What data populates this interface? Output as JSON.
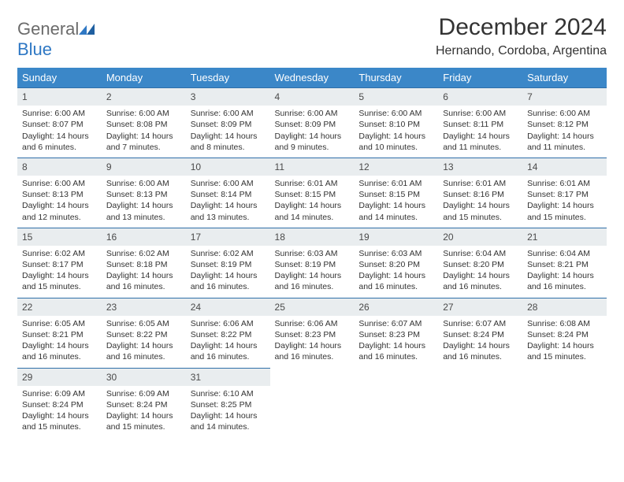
{
  "logo": {
    "word1": "General",
    "word2": "Blue"
  },
  "title": "December 2024",
  "location": "Hernando, Cordoba, Argentina",
  "colors": {
    "header_bg": "#3b87c8",
    "header_text": "#ffffff",
    "daynum_bg": "#e9edef",
    "row_divider": "#2f6fa8",
    "logo_gray": "#6b6b6b",
    "logo_blue": "#2f78c4"
  },
  "weekday_labels": [
    "Sunday",
    "Monday",
    "Tuesday",
    "Wednesday",
    "Thursday",
    "Friday",
    "Saturday"
  ],
  "days": [
    {
      "n": 1,
      "sunrise": "6:00 AM",
      "sunset": "8:07 PM",
      "daylight": "14 hours and 6 minutes."
    },
    {
      "n": 2,
      "sunrise": "6:00 AM",
      "sunset": "8:08 PM",
      "daylight": "14 hours and 7 minutes."
    },
    {
      "n": 3,
      "sunrise": "6:00 AM",
      "sunset": "8:09 PM",
      "daylight": "14 hours and 8 minutes."
    },
    {
      "n": 4,
      "sunrise": "6:00 AM",
      "sunset": "8:09 PM",
      "daylight": "14 hours and 9 minutes."
    },
    {
      "n": 5,
      "sunrise": "6:00 AM",
      "sunset": "8:10 PM",
      "daylight": "14 hours and 10 minutes."
    },
    {
      "n": 6,
      "sunrise": "6:00 AM",
      "sunset": "8:11 PM",
      "daylight": "14 hours and 11 minutes."
    },
    {
      "n": 7,
      "sunrise": "6:00 AM",
      "sunset": "8:12 PM",
      "daylight": "14 hours and 11 minutes."
    },
    {
      "n": 8,
      "sunrise": "6:00 AM",
      "sunset": "8:13 PM",
      "daylight": "14 hours and 12 minutes."
    },
    {
      "n": 9,
      "sunrise": "6:00 AM",
      "sunset": "8:13 PM",
      "daylight": "14 hours and 13 minutes."
    },
    {
      "n": 10,
      "sunrise": "6:00 AM",
      "sunset": "8:14 PM",
      "daylight": "14 hours and 13 minutes."
    },
    {
      "n": 11,
      "sunrise": "6:01 AM",
      "sunset": "8:15 PM",
      "daylight": "14 hours and 14 minutes."
    },
    {
      "n": 12,
      "sunrise": "6:01 AM",
      "sunset": "8:15 PM",
      "daylight": "14 hours and 14 minutes."
    },
    {
      "n": 13,
      "sunrise": "6:01 AM",
      "sunset": "8:16 PM",
      "daylight": "14 hours and 15 minutes."
    },
    {
      "n": 14,
      "sunrise": "6:01 AM",
      "sunset": "8:17 PM",
      "daylight": "14 hours and 15 minutes."
    },
    {
      "n": 15,
      "sunrise": "6:02 AM",
      "sunset": "8:17 PM",
      "daylight": "14 hours and 15 minutes."
    },
    {
      "n": 16,
      "sunrise": "6:02 AM",
      "sunset": "8:18 PM",
      "daylight": "14 hours and 16 minutes."
    },
    {
      "n": 17,
      "sunrise": "6:02 AM",
      "sunset": "8:19 PM",
      "daylight": "14 hours and 16 minutes."
    },
    {
      "n": 18,
      "sunrise": "6:03 AM",
      "sunset": "8:19 PM",
      "daylight": "14 hours and 16 minutes."
    },
    {
      "n": 19,
      "sunrise": "6:03 AM",
      "sunset": "8:20 PM",
      "daylight": "14 hours and 16 minutes."
    },
    {
      "n": 20,
      "sunrise": "6:04 AM",
      "sunset": "8:20 PM",
      "daylight": "14 hours and 16 minutes."
    },
    {
      "n": 21,
      "sunrise": "6:04 AM",
      "sunset": "8:21 PM",
      "daylight": "14 hours and 16 minutes."
    },
    {
      "n": 22,
      "sunrise": "6:05 AM",
      "sunset": "8:21 PM",
      "daylight": "14 hours and 16 minutes."
    },
    {
      "n": 23,
      "sunrise": "6:05 AM",
      "sunset": "8:22 PM",
      "daylight": "14 hours and 16 minutes."
    },
    {
      "n": 24,
      "sunrise": "6:06 AM",
      "sunset": "8:22 PM",
      "daylight": "14 hours and 16 minutes."
    },
    {
      "n": 25,
      "sunrise": "6:06 AM",
      "sunset": "8:23 PM",
      "daylight": "14 hours and 16 minutes."
    },
    {
      "n": 26,
      "sunrise": "6:07 AM",
      "sunset": "8:23 PM",
      "daylight": "14 hours and 16 minutes."
    },
    {
      "n": 27,
      "sunrise": "6:07 AM",
      "sunset": "8:24 PM",
      "daylight": "14 hours and 16 minutes."
    },
    {
      "n": 28,
      "sunrise": "6:08 AM",
      "sunset": "8:24 PM",
      "daylight": "14 hours and 15 minutes."
    },
    {
      "n": 29,
      "sunrise": "6:09 AM",
      "sunset": "8:24 PM",
      "daylight": "14 hours and 15 minutes."
    },
    {
      "n": 30,
      "sunrise": "6:09 AM",
      "sunset": "8:24 PM",
      "daylight": "14 hours and 15 minutes."
    },
    {
      "n": 31,
      "sunrise": "6:10 AM",
      "sunset": "8:25 PM",
      "daylight": "14 hours and 14 minutes."
    }
  ],
  "labels": {
    "sunrise": "Sunrise:",
    "sunset": "Sunset:",
    "daylight": "Daylight:"
  },
  "layout": {
    "first_weekday_index": 0,
    "cols": 7
  }
}
